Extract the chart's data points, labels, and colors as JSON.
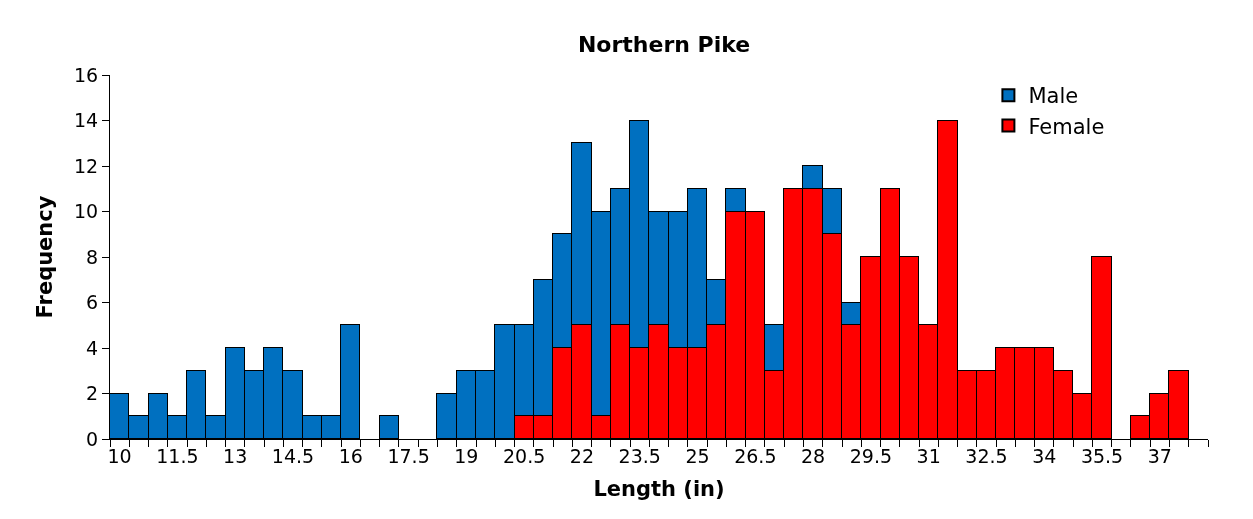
{
  "chart_data": {
    "type": "bar",
    "title": "Northern Pike",
    "xlabel": "Length (in)",
    "ylabel": "Frequency",
    "categories": [
      "10",
      null,
      null,
      "11.5",
      null,
      null,
      "13",
      null,
      null,
      "14.5",
      null,
      null,
      "16",
      null,
      null,
      "17.5",
      null,
      null,
      "19",
      null,
      null,
      "20.5",
      null,
      null,
      "22",
      null,
      null,
      "23.5",
      null,
      null,
      "25",
      null,
      null,
      "26.5",
      null,
      null,
      "28",
      null,
      null,
      "29.5",
      null,
      null,
      "31",
      null,
      null,
      "32.5",
      null,
      null,
      "34",
      null,
      null,
      "35.5",
      null,
      null,
      "37",
      null,
      null
    ],
    "stacked": true,
    "ylim": [
      0,
      16
    ],
    "yticks": [
      0,
      2,
      4,
      6,
      8,
      10,
      12,
      14,
      16
    ],
    "legend": "top right",
    "series": [
      {
        "name": "Female",
        "color": "#ff0000",
        "values": [
          0,
          0,
          0,
          0,
          0,
          0,
          0,
          0,
          0,
          0,
          0,
          0,
          0,
          0,
          0,
          0,
          0,
          0,
          0,
          0,
          0,
          1,
          1,
          4,
          5,
          1,
          5,
          4,
          5,
          4,
          4,
          5,
          10,
          10,
          3,
          11,
          11,
          9,
          5,
          8,
          11,
          8,
          5,
          14,
          3,
          3,
          4,
          4,
          4,
          3,
          2,
          8,
          0,
          1,
          2,
          3,
          0
        ]
      },
      {
        "name": "Male",
        "color": "#0070c0",
        "values": [
          2,
          1,
          2,
          1,
          3,
          1,
          4,
          3,
          4,
          3,
          1,
          1,
          5,
          0,
          1,
          0,
          0,
          2,
          3,
          3,
          5,
          4,
          6,
          5,
          8,
          9,
          6,
          10,
          5,
          6,
          7,
          2,
          1,
          0,
          2,
          0,
          1,
          2,
          1,
          0,
          0,
          0,
          0,
          0,
          0,
          0,
          0,
          0,
          0,
          0,
          0,
          0,
          0,
          0,
          0,
          0,
          0
        ]
      }
    ]
  }
}
